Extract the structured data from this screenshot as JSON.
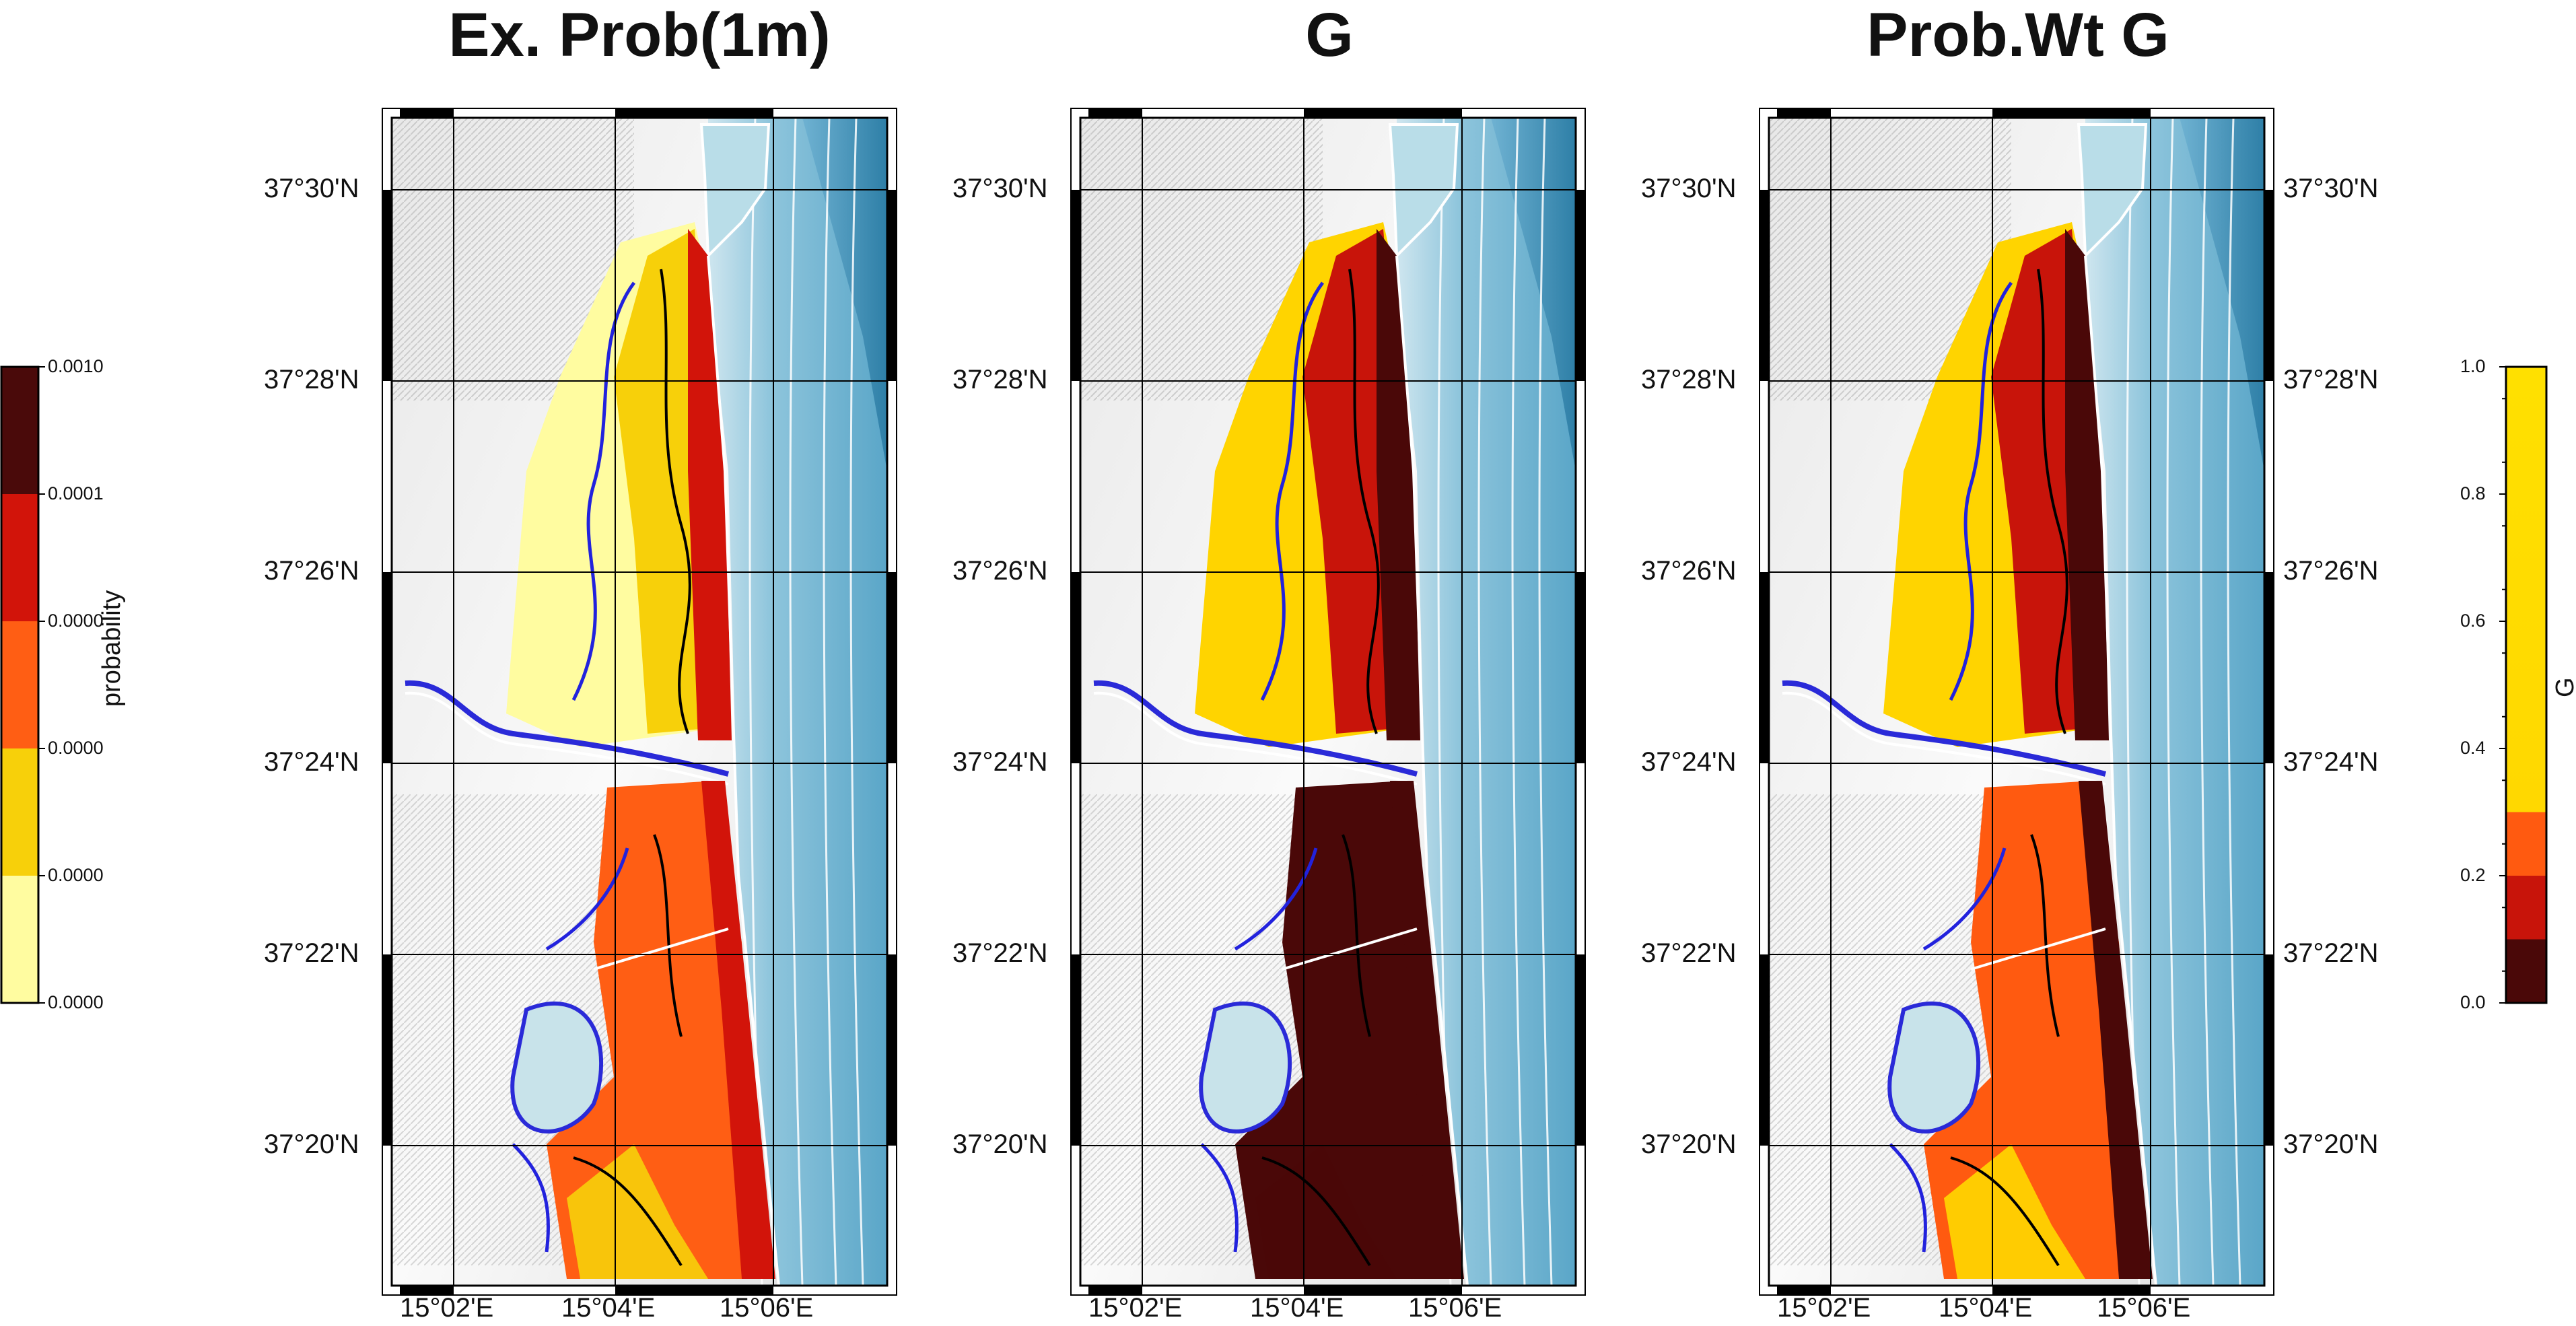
{
  "panels": [
    {
      "title": "Ex. Prob(1m)",
      "lat_side": "left"
    },
    {
      "title": "G",
      "lat_side": "left"
    },
    {
      "title": "Prob.Wt G",
      "lat_side": "both"
    }
  ],
  "lat_labels": [
    "37°30'N",
    "37°28'N",
    "37°26'N",
    "37°24'N",
    "37°22'N",
    "37°20'N"
  ],
  "lon_labels": [
    "15°02'E",
    "15°04'E",
    "15°06'E"
  ],
  "colorbar_probability": {
    "title": "probability",
    "tick_labels": [
      "0.0010",
      "0.0001",
      "0.0000",
      "0.0000",
      "0.0000",
      "0.0000"
    ],
    "colors": [
      "#4a0a0a",
      "#d2140a",
      "#ff5e14",
      "#f7d00a",
      "#fffca0"
    ]
  },
  "colorbar_g": {
    "title": "G",
    "tick_labels": [
      "1.0",
      "0.8",
      "0.6",
      "0.4",
      "0.2",
      "0.0"
    ],
    "colors": {
      "low": "#4a0808",
      "mid1": "#c8140a",
      "mid2": "#ff5a10",
      "high": "#ffd800"
    }
  }
}
